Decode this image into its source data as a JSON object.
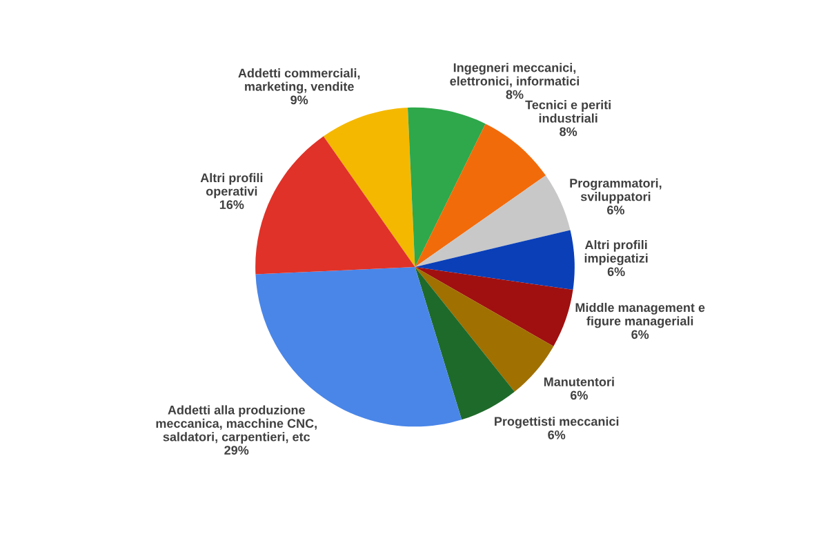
{
  "chart_data": {
    "type": "pie",
    "categories": [
      "Addetti commerciali,\nmarketing, vendite",
      "Ingegneri meccanici,\nelettronici, informatici",
      "Tecnici e periti\nindustriali",
      "Programmatori,\nsviluppatori",
      "Altri profili\nimpiegatizi",
      "Middle management e\nfigure manageriali",
      "Manutentori",
      "Progettisti meccanici",
      "Addetti alla produzione\nmeccanica, macchine CNC,\nsaldatori, carpentieri, etc",
      "Altri profili\noperativi"
    ],
    "values": [
      9,
      8,
      8,
      6,
      6,
      6,
      6,
      6,
      29,
      16
    ],
    "value_labels": [
      "9%",
      "8%",
      "8%",
      "6%",
      "6%",
      "6%",
      "6%",
      "6%",
      "29%",
      "16%"
    ],
    "colors": [
      "#f5b800",
      "#2ea84a",
      "#f26b0a",
      "#c8c8c8",
      "#0a3fb8",
      "#a01010",
      "#a07000",
      "#1e6a2a",
      "#4a86e8",
      "#e03228"
    ]
  }
}
